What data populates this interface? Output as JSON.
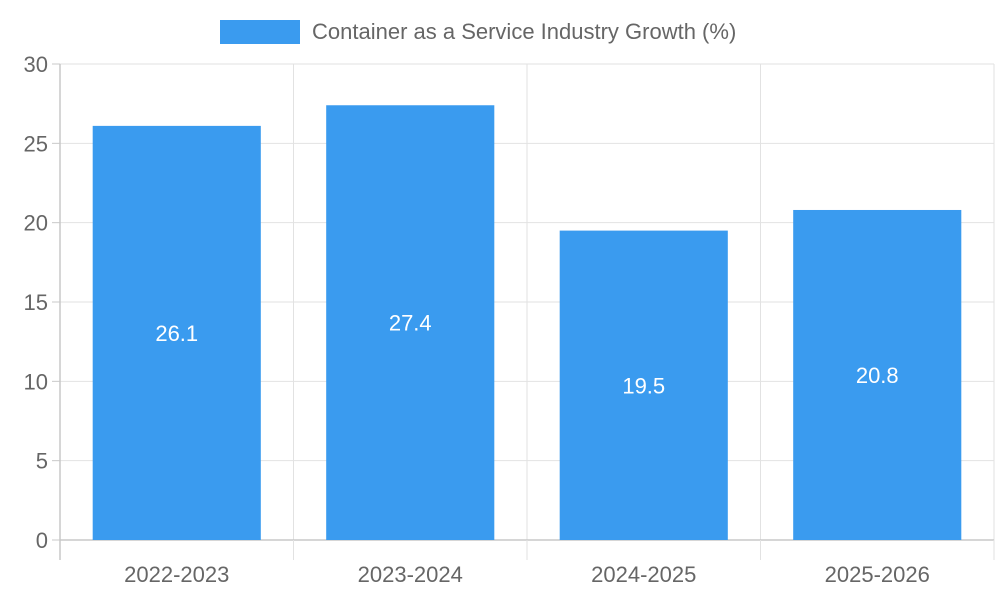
{
  "chart_data": {
    "type": "bar",
    "categories": [
      "2022-2023",
      "2023-2024",
      "2024-2025",
      "2025-2026"
    ],
    "series": [
      {
        "name": "Container as a Service Industry Growth (%)",
        "values": [
          26.1,
          27.4,
          19.5,
          20.8
        ],
        "color": "#3a9bef"
      }
    ],
    "data_labels": [
      "26.1",
      "27.4",
      "19.5",
      "20.8"
    ],
    "ylim": [
      0,
      30
    ],
    "yticks": [
      0,
      5,
      10,
      15,
      20,
      25,
      30
    ],
    "ytick_labels": [
      "0",
      "5",
      "10",
      "15",
      "20",
      "25",
      "30"
    ],
    "grid": true,
    "legend_position": "top",
    "colors": {
      "grid": "#e2e2e2",
      "axis": "#c8c8c8",
      "tick_text": "#666666",
      "data_label": "#ffffff"
    }
  }
}
